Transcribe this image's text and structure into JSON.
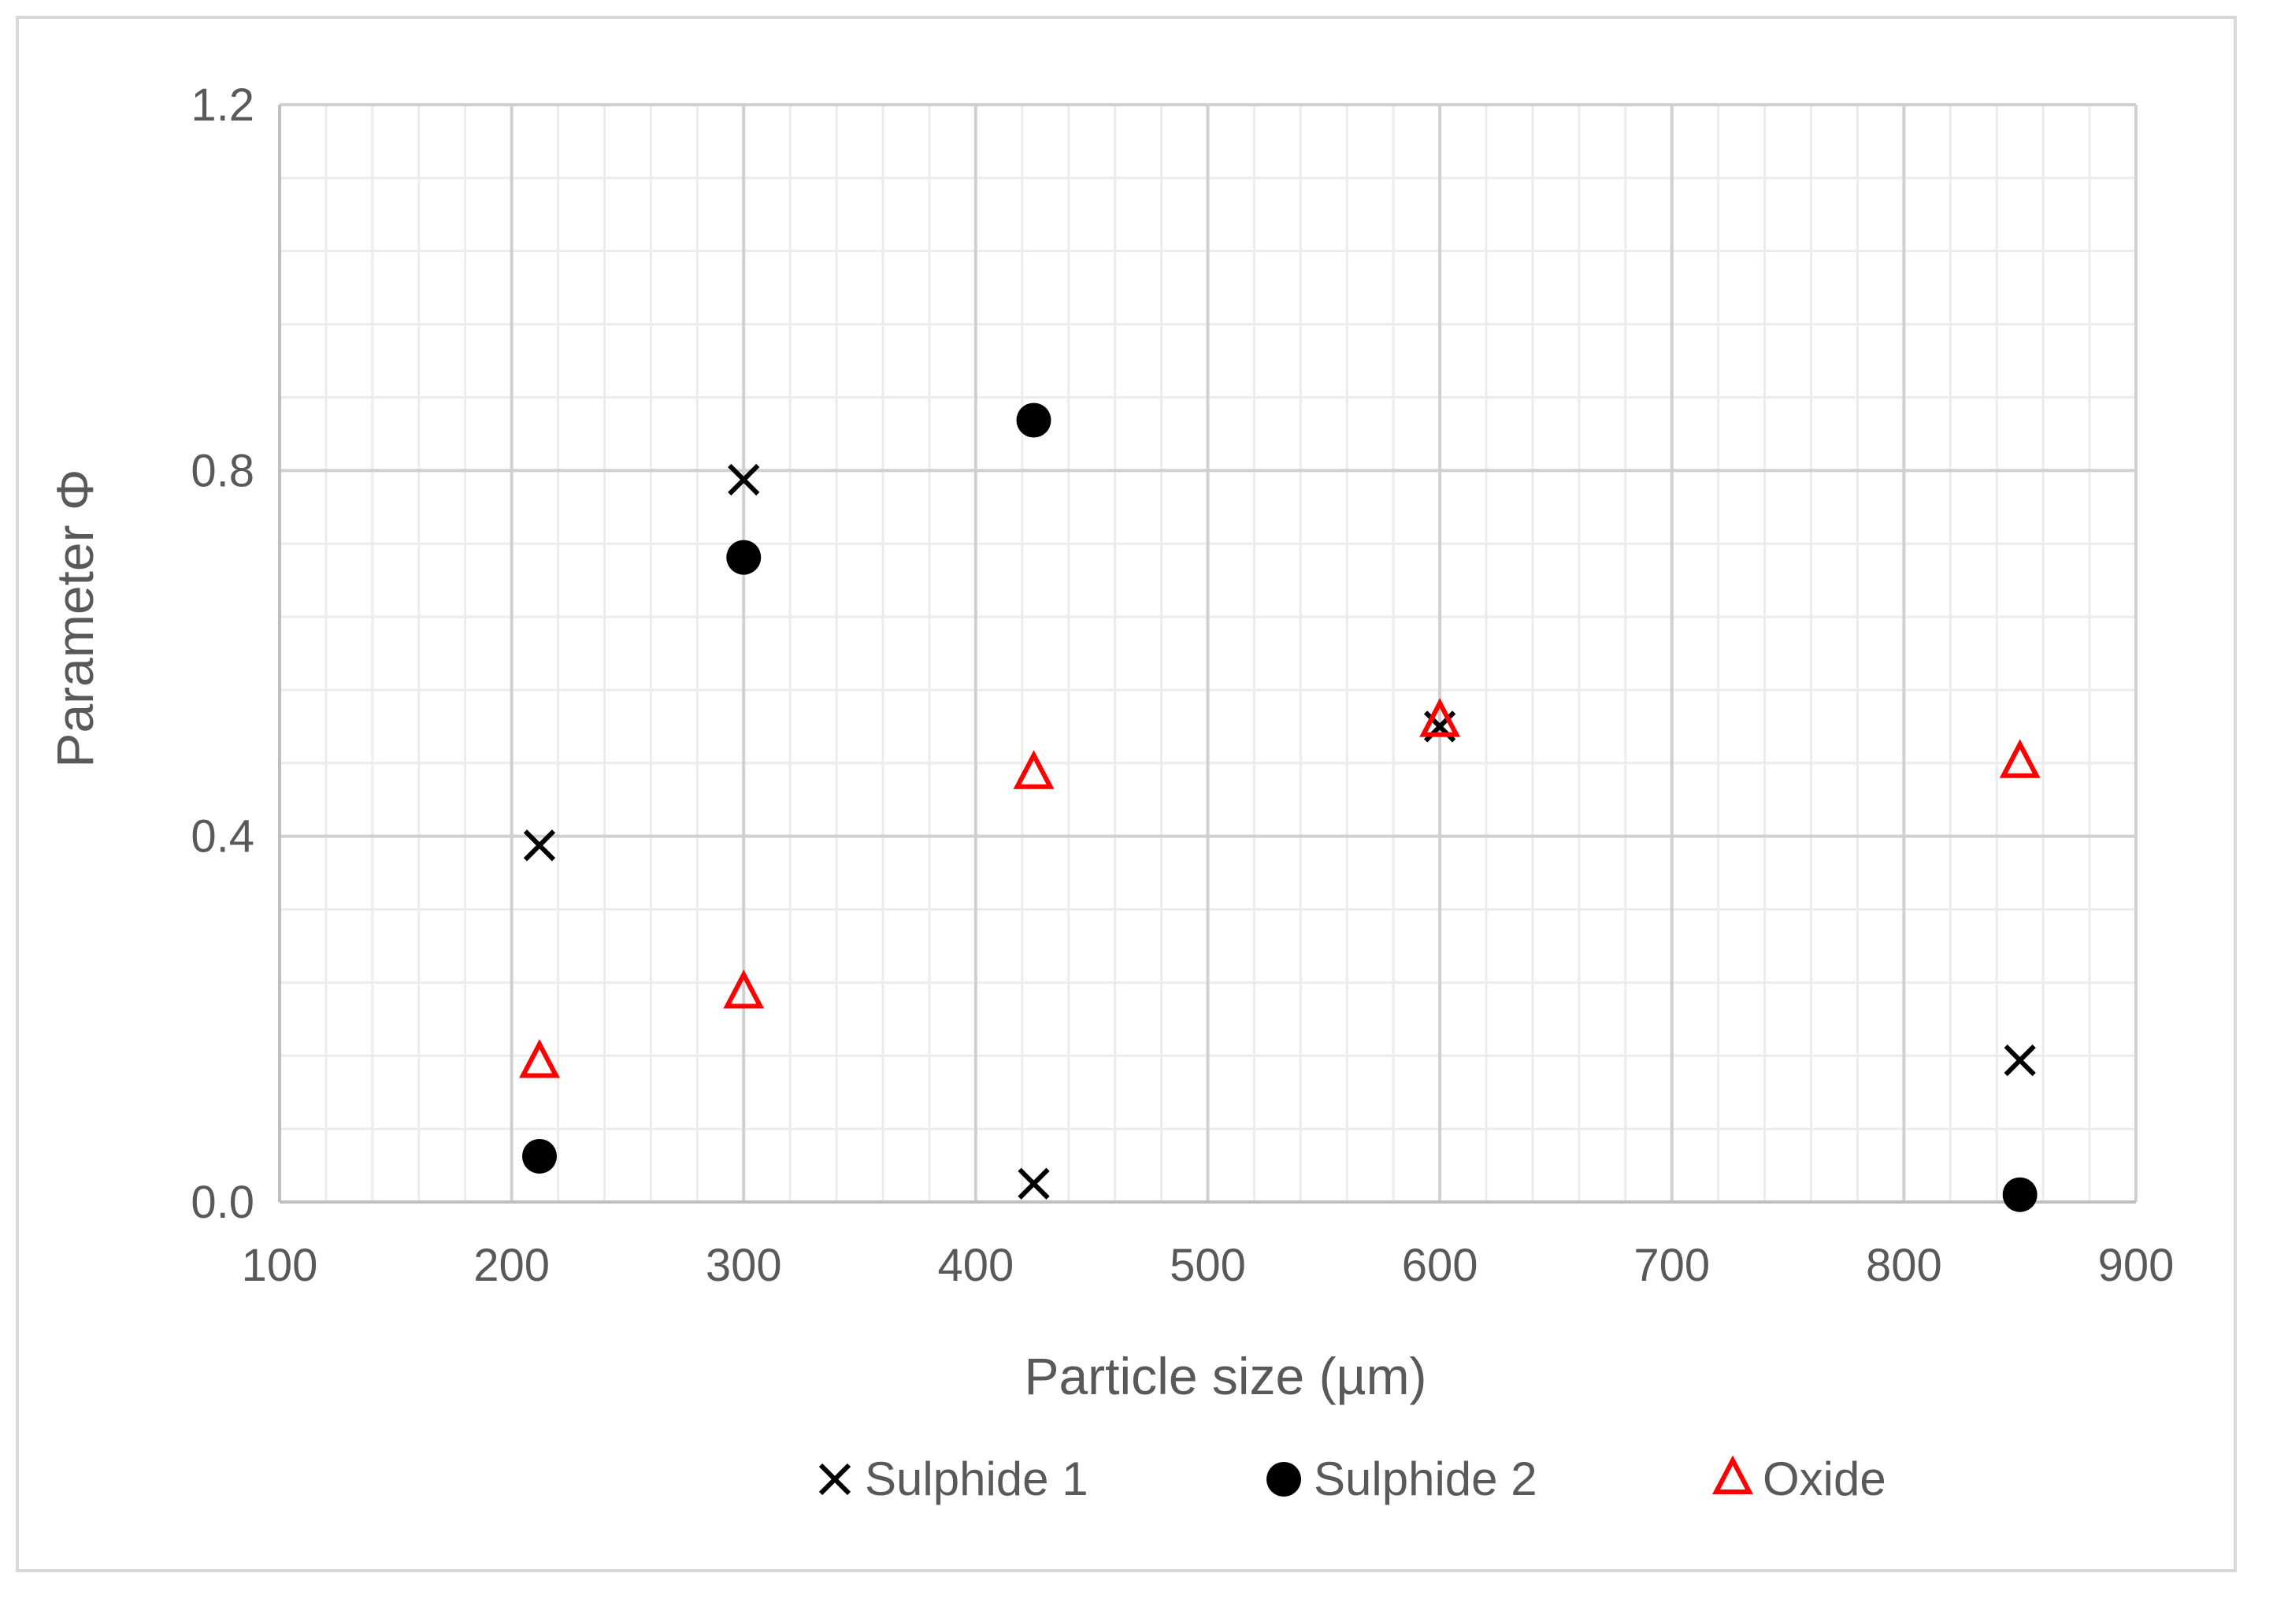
{
  "chart_data": {
    "type": "scatter",
    "title": "",
    "xlabel": "Particle size (µm)",
    "ylabel": "Parameter Φ",
    "xlim": [
      100,
      900
    ],
    "ylim": [
      0,
      1.2
    ],
    "x_ticks": [
      100,
      200,
      300,
      400,
      500,
      600,
      700,
      800,
      900
    ],
    "x_tick_labels": [
      "100",
      "200",
      "300",
      "400",
      "500",
      "600",
      "700",
      "800",
      "900"
    ],
    "y_ticks": [
      0,
      0.4,
      0.8,
      1.2
    ],
    "y_tick_labels": [
      "0.0",
      "0.4",
      "0.8",
      "1.2"
    ],
    "x_minor_step": 20,
    "y_minor_step": 0.08,
    "grid": true,
    "legend_position": "bottom",
    "series": [
      {
        "name": "Sulphide 1",
        "marker": "x-icon",
        "color": "#000000",
        "x": [
          212,
          300,
          425,
          600,
          850
        ],
        "y": [
          0.39,
          0.79,
          0.02,
          0.52,
          0.155
        ]
      },
      {
        "name": "Sulphide 2",
        "marker": "filled-circle-icon",
        "color": "#000000",
        "x": [
          212,
          300,
          425,
          850
        ],
        "y": [
          0.05,
          0.705,
          0.855,
          0.008
        ]
      },
      {
        "name": "Oxide",
        "marker": "open-triangle-icon",
        "color": "#ff0000",
        "x": [
          212,
          300,
          425,
          600,
          850
        ],
        "y": [
          0.152,
          0.228,
          0.468,
          0.525,
          0.48
        ]
      }
    ]
  }
}
